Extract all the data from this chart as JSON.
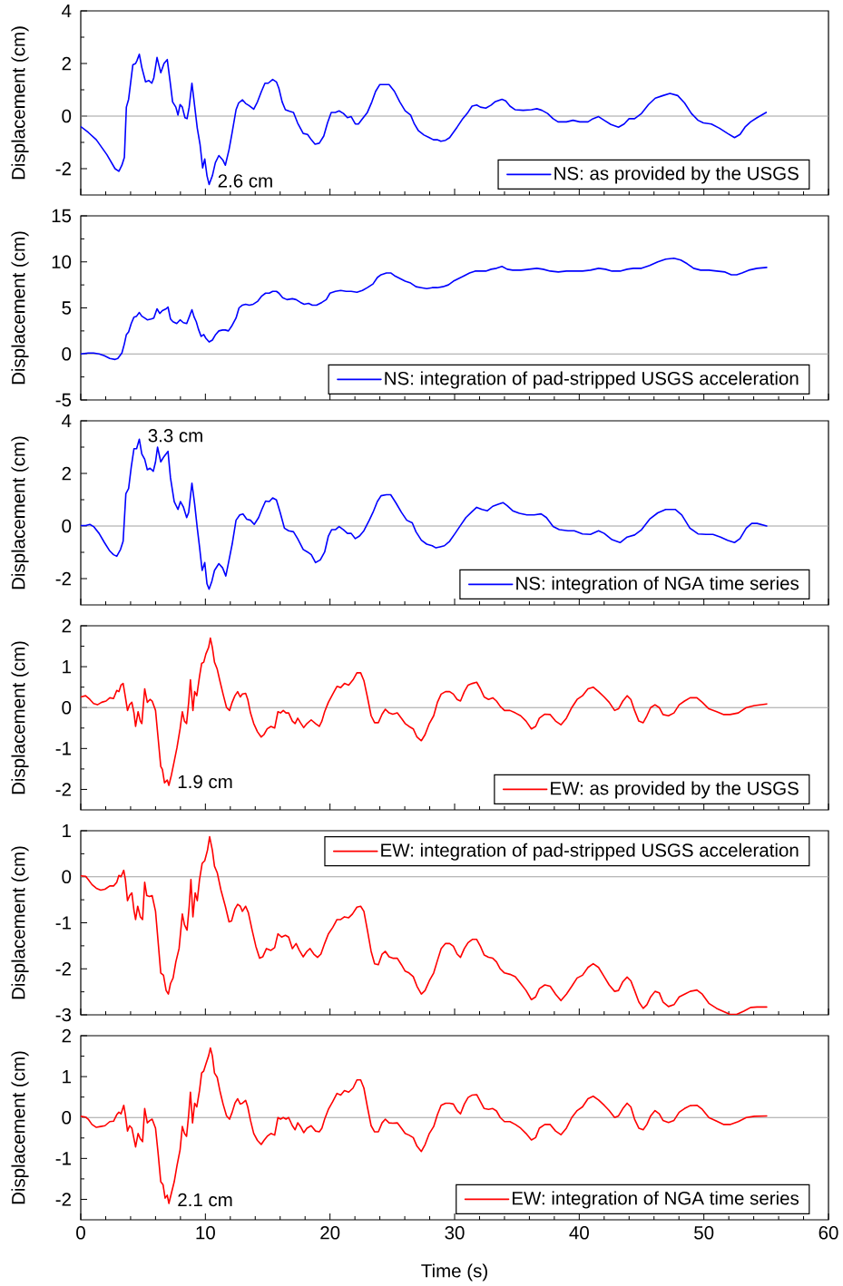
{
  "chart_data": [
    {
      "type": "line",
      "ylabel": "Displacement (cm)",
      "xlim": [
        0,
        60
      ],
      "xticks": [
        0,
        10,
        20,
        30,
        40,
        50,
        60
      ],
      "ylim": [
        -3,
        4
      ],
      "yticks": [
        -2,
        0,
        2,
        4
      ],
      "tick_labels": "y",
      "legend": "bottom right",
      "ref_lines": [
        {
          "axis": "y",
          "value": 0,
          "color": "#a0a0a0"
        }
      ],
      "annotations": [
        {
          "text": "2.6 cm",
          "x": 10.3,
          "y": -2.6
        }
      ],
      "x": [
        0,
        0.6,
        1.25,
        2.1,
        2.75,
        3.06,
        3.3,
        3.5,
        3.66,
        3.84,
        4.18,
        4.4,
        4.5,
        4.7,
        4.9,
        5.2,
        5.47,
        5.7,
        5.86,
        6.12,
        6.42,
        6.68,
        6.94,
        7.16,
        7.37,
        7.63,
        7.8,
        7.97,
        8.15,
        8.36,
        8.53,
        8.7,
        8.92,
        9.1,
        9.35,
        9.57,
        9.78,
        9.95,
        10.13,
        10.3,
        10.56,
        10.8,
        11.08,
        11.4,
        11.6,
        11.9,
        12.15,
        12.46,
        12.67,
        12.97,
        13.23,
        13.5,
        13.88,
        14.18,
        14.5,
        14.78,
        15.04,
        15.4,
        15.7,
        15.9,
        16.16,
        16.42,
        16.77,
        17.07,
        17.4,
        17.85,
        18.2,
        18.5,
        18.8,
        19.14,
        19.5,
        19.8,
        20.1,
        20.43,
        20.73,
        21.08,
        21.4,
        21.7,
        22.03,
        22.28,
        22.6,
        23.0,
        23.36,
        23.66,
        24.0,
        24.44,
        24.74,
        25.17,
        25.6,
        26.03,
        26.47,
        26.77,
        27.1,
        27.54,
        27.97,
        28.3,
        28.6,
        28.9,
        29.27,
        29.6,
        29.9,
        30.2,
        30.65,
        31.07,
        31.4,
        31.77,
        32.07,
        32.5,
        32.93,
        33.23,
        33.8,
        34.1,
        34.44,
        34.87,
        35.5,
        36.16,
        36.6,
        37.0,
        37.46,
        37.9,
        38.3,
        38.97,
        39.5,
        40.04,
        40.7,
        41.1,
        41.55,
        42.0,
        42.54,
        43.15,
        43.6,
        44.0,
        44.44,
        45.0,
        45.56,
        46.1,
        46.72,
        47.28,
        47.9,
        48.45,
        49.0,
        49.53,
        49.96,
        50.6,
        51.25,
        51.9,
        52.46,
        52.9,
        53.3,
        53.75,
        54.27,
        55.0
      ],
      "series": [
        {
          "name": "NS: as provided by the USGS",
          "color": "#0000ff",
          "values": [
            -0.4,
            -0.62,
            -0.9,
            -1.47,
            -2.0,
            -2.1,
            -1.87,
            -1.57,
            0.34,
            0.64,
            1.95,
            2.0,
            2.1,
            2.35,
            1.85,
            1.3,
            1.35,
            1.25,
            1.45,
            2.23,
            1.65,
            2.0,
            2.15,
            1.35,
            0.54,
            0.34,
            0.04,
            0.44,
            0.34,
            -0.06,
            -0.1,
            0.34,
            1.25,
            0.54,
            -0.46,
            -1.07,
            -1.97,
            -1.63,
            -2.27,
            -2.6,
            -2.27,
            -1.77,
            -1.5,
            -1.67,
            -1.87,
            -1.27,
            -0.62,
            0.24,
            0.5,
            0.62,
            0.48,
            0.4,
            0.26,
            0.54,
            0.94,
            1.25,
            1.25,
            1.39,
            1.3,
            1.05,
            0.54,
            0.24,
            0.18,
            0.14,
            -0.26,
            -0.66,
            -0.7,
            -0.9,
            -1.07,
            -1.03,
            -0.76,
            -0.26,
            0.14,
            0.14,
            0.2,
            0.1,
            -0.06,
            -0.02,
            -0.3,
            -0.3,
            -0.1,
            0.14,
            0.54,
            0.94,
            1.2,
            1.2,
            1.2,
            0.94,
            0.54,
            0.2,
            0.04,
            -0.3,
            -0.56,
            -0.72,
            -0.82,
            -0.9,
            -0.9,
            -0.96,
            -0.92,
            -0.82,
            -0.62,
            -0.42,
            -0.1,
            0.14,
            0.38,
            0.42,
            0.34,
            0.3,
            0.42,
            0.54,
            0.64,
            0.58,
            0.38,
            0.24,
            0.22,
            0.24,
            0.28,
            0.22,
            0.1,
            -0.1,
            -0.22,
            -0.22,
            -0.16,
            -0.22,
            -0.22,
            -0.1,
            -0.02,
            -0.16,
            -0.32,
            -0.42,
            -0.3,
            -0.1,
            -0.1,
            0.1,
            0.44,
            0.68,
            0.78,
            0.86,
            0.78,
            0.5,
            0.1,
            -0.16,
            -0.26,
            -0.3,
            -0.46,
            -0.66,
            -0.82,
            -0.7,
            -0.42,
            -0.22,
            -0.06,
            0.14
          ]
        }
      ]
    },
    {
      "type": "line",
      "ylabel": "Displacement (cm)",
      "xlim": [
        0,
        60
      ],
      "xticks": [
        0,
        10,
        20,
        30,
        40,
        50,
        60
      ],
      "ylim": [
        -5,
        15
      ],
      "yticks": [
        -5,
        0,
        5,
        10,
        15
      ],
      "tick_labels": "y",
      "legend": "bottom right",
      "ref_lines": [
        {
          "axis": "y",
          "value": 0,
          "color": "#a0a0a0"
        }
      ],
      "x": [
        0,
        0.6,
        1.03,
        1.47,
        1.9,
        2.33,
        2.76,
        2.97,
        3.3,
        3.5,
        3.66,
        3.84,
        4.05,
        4.27,
        4.48,
        4.7,
        4.9,
        5.13,
        5.34,
        5.65,
        5.86,
        6.12,
        6.34,
        6.55,
        6.85,
        7.0,
        7.2,
        7.4,
        7.7,
        7.97,
        8.23,
        8.5,
        8.7,
        8.92,
        9.1,
        9.27,
        9.44,
        9.66,
        9.87,
        10.04,
        10.3,
        10.56,
        10.82,
        11.08,
        11.38,
        11.6,
        11.85,
        12.1,
        12.46,
        12.7,
        12.97,
        13.23,
        13.53,
        13.84,
        14.18,
        14.53,
        14.83,
        15.13,
        15.4,
        15.7,
        15.9,
        16.2,
        16.55,
        16.98,
        17.28,
        17.63,
        17.93,
        18.28,
        18.58,
        18.92,
        19.35,
        19.7,
        20.0,
        20.43,
        20.86,
        21.3,
        21.7,
        22.16,
        22.6,
        23.0,
        23.45,
        23.8,
        24.1,
        24.53,
        24.87,
        25.17,
        25.6,
        26.03,
        26.47,
        26.9,
        27.33,
        27.76,
        28.2,
        28.6,
        29.05,
        29.5,
        29.9,
        30.34,
        30.78,
        31.2,
        31.64,
        32.07,
        32.5,
        32.93,
        33.36,
        33.8,
        34.22,
        34.66,
        35.3,
        35.95,
        36.6,
        37.1,
        37.67,
        38.32,
        38.97,
        39.6,
        40.26,
        40.9,
        41.55,
        42.1,
        42.63,
        43.28,
        43.84,
        44.35,
        45.0,
        45.65,
        46.3,
        46.94,
        47.6,
        48.15,
        48.66,
        49.18,
        49.74,
        50.4,
        51.03,
        51.7,
        52.2,
        52.63,
        53.06,
        53.6,
        54.27,
        55.04
      ],
      "series": [
        {
          "name": "NS: integration of pad-stripped USGS acceleration",
          "color": "#0000ff",
          "values": [
            0,
            0.1,
            0.1,
            0,
            -0.2,
            -0.5,
            -0.6,
            -0.5,
            0.1,
            1.1,
            2.1,
            2.4,
            3.3,
            4.0,
            4.1,
            4.5,
            4.1,
            3.9,
            3.7,
            3.8,
            3.9,
            4.9,
            4.4,
            4.7,
            4.9,
            5.1,
            3.8,
            3.5,
            3.3,
            3.7,
            3.4,
            3.3,
            4.0,
            4.8,
            4.0,
            3.5,
            2.7,
            1.9,
            2.1,
            1.7,
            1.3,
            1.5,
            2.1,
            2.5,
            2.6,
            2.6,
            2.5,
            3.0,
            3.9,
            5.0,
            5.3,
            5.4,
            5.3,
            5.4,
            5.7,
            6.3,
            6.6,
            6.6,
            6.8,
            6.8,
            6.6,
            6.1,
            5.9,
            6.0,
            5.9,
            5.6,
            5.4,
            5.5,
            5.3,
            5.3,
            5.6,
            5.9,
            6.6,
            6.8,
            6.9,
            6.8,
            6.8,
            6.7,
            6.9,
            7.2,
            7.6,
            8.3,
            8.6,
            8.8,
            8.8,
            8.5,
            8.2,
            7.9,
            7.7,
            7.3,
            7.2,
            7.1,
            7.2,
            7.2,
            7.3,
            7.5,
            7.9,
            8.2,
            8.5,
            8.8,
            9.0,
            9.0,
            9.0,
            9.2,
            9.3,
            9.5,
            9.2,
            9.1,
            9.1,
            9.2,
            9.3,
            9.2,
            9.0,
            8.9,
            9.0,
            9.0,
            9.0,
            9.1,
            9.3,
            9.2,
            9.0,
            9.0,
            9.2,
            9.3,
            9.3,
            9.6,
            10.0,
            10.3,
            10.4,
            10.2,
            9.8,
            9.3,
            9.1,
            9.1,
            9.0,
            8.9,
            8.6,
            8.6,
            8.8,
            9.1,
            9.3,
            9.4
          ]
        }
      ]
    },
    {
      "type": "line",
      "ylabel": "Displacement (cm)",
      "xlim": [
        0,
        60
      ],
      "xticks": [
        0,
        10,
        20,
        30,
        40,
        50,
        60
      ],
      "ylim": [
        -3,
        4
      ],
      "yticks": [
        -2,
        0,
        2,
        4
      ],
      "tick_labels": "y",
      "legend": "bottom right",
      "ref_lines": [
        {
          "axis": "y",
          "value": 0,
          "color": "#a0a0a0"
        }
      ],
      "annotations": [
        {
          "text": "3.3 cm",
          "x": 4.7,
          "y": 3.3
        }
      ],
      "x": [
        0,
        0.39,
        0.73,
        1.03,
        1.47,
        1.9,
        2.33,
        2.63,
        2.89,
        3.19,
        3.4,
        3.62,
        3.84,
        4.05,
        4.27,
        4.48,
        4.7,
        4.9,
        5.13,
        5.34,
        5.56,
        5.82,
        6.0,
        6.16,
        6.42,
        6.68,
        7.0,
        7.2,
        7.5,
        7.8,
        8.0,
        8.23,
        8.5,
        8.66,
        8.92,
        9.14,
        9.35,
        9.53,
        9.74,
        9.95,
        10.13,
        10.3,
        10.52,
        10.73,
        11.08,
        11.38,
        11.64,
        11.9,
        12.15,
        12.46,
        12.76,
        13.02,
        13.32,
        13.62,
        13.92,
        14.27,
        14.53,
        14.83,
        15.13,
        15.4,
        15.7,
        16.0,
        16.34,
        16.68,
        17.07,
        17.4,
        17.85,
        18.2,
        18.5,
        18.84,
        19.22,
        19.57,
        19.87,
        20.13,
        20.43,
        20.73,
        21.08,
        21.4,
        21.7,
        22.03,
        22.37,
        22.72,
        23.15,
        23.45,
        23.8,
        24.1,
        24.53,
        24.87,
        25.3,
        25.73,
        26.16,
        26.6,
        26.9,
        27.33,
        27.76,
        28.2,
        28.5,
        28.84,
        29.18,
        29.6,
        30.04,
        30.47,
        30.9,
        31.34,
        31.77,
        32.2,
        32.63,
        33.06,
        33.5,
        33.88,
        34.22,
        34.66,
        35.2,
        35.8,
        36.38,
        36.94,
        37.37,
        37.9,
        38.4,
        39.1,
        39.6,
        40.26,
        40.9,
        41.55,
        42.0,
        42.63,
        43.28,
        43.84,
        44.44,
        45.0,
        45.65,
        46.3,
        46.94,
        47.7,
        48.23,
        48.88,
        49.53,
        50.17,
        50.73,
        51.34,
        51.9,
        52.46,
        52.9,
        53.4,
        53.84,
        54.27,
        55.04
      ],
      "series": [
        {
          "name": "NS: integration of NGA time series",
          "color": "#0000ff",
          "values": [
            0.02,
            0.02,
            0.06,
            -0.02,
            -0.28,
            -0.63,
            -0.95,
            -1.09,
            -1.15,
            -0.89,
            -0.58,
            1.23,
            1.43,
            2.24,
            2.94,
            2.94,
            3.3,
            2.74,
            2.54,
            2.14,
            2.2,
            2.08,
            2.44,
            3.0,
            2.44,
            2.64,
            2.84,
            1.83,
            0.93,
            0.63,
            0.93,
            0.73,
            0.32,
            0.52,
            1.63,
            0.83,
            -0.08,
            -0.79,
            -1.69,
            -1.39,
            -2.2,
            -2.4,
            -2.1,
            -1.69,
            -1.43,
            -1.59,
            -1.9,
            -1.29,
            -0.69,
            0.22,
            0.42,
            0.46,
            0.26,
            0.22,
            0.06,
            0.32,
            0.63,
            0.95,
            0.93,
            1.07,
            0.99,
            0.52,
            -0.08,
            -0.18,
            -0.22,
            -0.48,
            -0.89,
            -0.99,
            -1.09,
            -1.39,
            -1.29,
            -0.99,
            -0.38,
            -0.14,
            -0.14,
            -0.02,
            -0.14,
            -0.28,
            -0.28,
            -0.48,
            -0.38,
            -0.18,
            0.22,
            0.52,
            0.93,
            1.15,
            1.19,
            1.19,
            0.87,
            0.52,
            0.22,
            0.12,
            -0.22,
            -0.54,
            -0.69,
            -0.75,
            -0.83,
            -0.79,
            -0.75,
            -0.58,
            -0.28,
            0.02,
            0.32,
            0.52,
            0.71,
            0.63,
            0.58,
            0.75,
            0.83,
            0.89,
            0.77,
            0.58,
            0.48,
            0.42,
            0.42,
            0.46,
            0.32,
            -0.02,
            -0.14,
            -0.18,
            -0.18,
            -0.3,
            -0.32,
            -0.18,
            -0.28,
            -0.52,
            -0.63,
            -0.42,
            -0.34,
            -0.14,
            0.26,
            0.5,
            0.63,
            0.63,
            0.42,
            -0.08,
            -0.3,
            -0.32,
            -0.32,
            -0.42,
            -0.54,
            -0.63,
            -0.48,
            -0.08,
            0.1,
            0.1,
            0.0
          ]
        }
      ]
    },
    {
      "type": "line",
      "ylabel": "Displacement (cm)",
      "xlim": [
        0,
        60
      ],
      "xticks": [
        0,
        10,
        20,
        30,
        40,
        50,
        60
      ],
      "ylim": [
        -2.5,
        2
      ],
      "yticks": [
        -2,
        -1,
        0,
        1,
        2
      ],
      "tick_labels": "y",
      "legend": "bottom right",
      "ref_lines": [
        {
          "axis": "y",
          "value": 0,
          "color": "#a0a0a0"
        }
      ],
      "annotations": [
        {
          "text": "1.9 cm",
          "x": 7.07,
          "y": -1.9
        }
      ],
      "x": [
        0,
        0.39,
        0.73,
        1.03,
        1.34,
        1.68,
        2.03,
        2.33,
        2.63,
        2.89,
        3.06,
        3.23,
        3.4,
        3.58,
        3.75,
        3.92,
        4.1,
        4.27,
        4.4,
        4.6,
        4.78,
        4.9,
        5.13,
        5.34,
        5.56,
        5.73,
        6.0,
        6.2,
        6.42,
        6.55,
        6.72,
        6.94,
        7.07,
        7.28,
        7.5,
        7.72,
        7.97,
        8.15,
        8.32,
        8.49,
        8.66,
        8.8,
        9.0,
        9.14,
        9.31,
        9.53,
        9.7,
        9.87,
        10.04,
        10.26,
        10.4,
        10.56,
        10.73,
        10.95,
        11.16,
        11.42,
        11.7,
        11.94,
        12.15,
        12.37,
        12.59,
        12.8,
        12.97,
        13.23,
        13.4,
        13.62,
        13.88,
        14.18,
        14.48,
        14.7,
        14.96,
        15.26,
        15.56,
        15.82,
        16.03,
        16.25,
        16.47,
        16.68,
        16.98,
        17.2,
        17.41,
        17.63,
        17.89,
        18.15,
        18.49,
        18.84,
        19.14,
        19.35,
        19.57,
        19.87,
        20.22,
        20.56,
        20.86,
        21.16,
        21.5,
        21.85,
        22.16,
        22.46,
        22.72,
        23.0,
        23.3,
        23.58,
        23.88,
        24.18,
        24.44,
        24.74,
        25.04,
        25.4,
        25.73,
        26.03,
        26.34,
        26.68,
        26.98,
        27.33,
        27.63,
        27.97,
        28.32,
        28.62,
        28.92,
        29.27,
        29.6,
        29.9,
        30.2,
        30.47,
        30.78,
        31.08,
        31.42,
        31.77,
        32.07,
        32.37,
        32.72,
        33.06,
        33.36,
        33.66,
        34.0,
        34.44,
        34.87,
        35.3,
        35.73,
        36.16,
        36.5,
        36.8,
        37.24,
        37.67,
        38.1,
        38.53,
        38.97,
        39.4,
        39.83,
        40.26,
        40.7,
        41.12,
        41.55,
        42.0,
        42.4,
        42.84,
        43.15,
        43.5,
        43.84,
        44.14,
        44.44,
        44.78,
        45.13,
        45.43,
        45.73,
        46.08,
        46.42,
        46.72,
        47.16,
        47.6,
        48.02,
        48.45,
        48.9,
        49.44,
        49.87,
        50.4,
        51.03,
        51.6,
        52.1,
        52.76,
        53.4,
        54.05,
        55.04
      ],
      "series": [
        {
          "name": "EW: as provided by the USGS",
          "color": "#ff0000",
          "values": [
            0.26,
            0.29,
            0.2,
            0.1,
            0.07,
            0.13,
            0.16,
            0.24,
            0.22,
            0.42,
            0.39,
            0.55,
            0.59,
            0.26,
            -0.07,
            0.07,
            0.13,
            -0.13,
            -0.46,
            -0.1,
            -0.33,
            -0.39,
            0.46,
            0.13,
            0.2,
            0.16,
            -0.07,
            -0.72,
            -1.44,
            -1.51,
            -1.84,
            -1.77,
            -1.9,
            -1.64,
            -1.31,
            -0.98,
            -0.52,
            -0.1,
            -0.33,
            -0.39,
            0.13,
            0.68,
            -0.07,
            0.39,
            0.29,
            0.76,
            1.08,
            1.11,
            1.31,
            1.47,
            1.7,
            1.47,
            1.11,
            0.94,
            0.66,
            0.33,
            0.0,
            -0.07,
            0.13,
            0.29,
            0.39,
            0.26,
            0.33,
            0.35,
            0.2,
            -0.13,
            -0.39,
            -0.59,
            -0.72,
            -0.66,
            -0.52,
            -0.46,
            -0.5,
            -0.1,
            -0.13,
            -0.07,
            -0.13,
            -0.13,
            -0.33,
            -0.39,
            -0.26,
            -0.37,
            -0.49,
            -0.39,
            -0.3,
            -0.39,
            -0.46,
            -0.33,
            -0.1,
            0.13,
            0.33,
            0.52,
            0.49,
            0.59,
            0.55,
            0.68,
            0.85,
            0.85,
            0.66,
            0.26,
            -0.2,
            -0.37,
            -0.37,
            -0.16,
            -0.04,
            -0.13,
            -0.16,
            -0.13,
            -0.26,
            -0.39,
            -0.46,
            -0.52,
            -0.72,
            -0.81,
            -0.66,
            -0.39,
            -0.2,
            0.13,
            0.33,
            0.39,
            0.39,
            0.33,
            0.2,
            0.16,
            0.39,
            0.55,
            0.59,
            0.62,
            0.46,
            0.26,
            0.2,
            0.24,
            0.16,
            0.03,
            -0.07,
            -0.07,
            -0.13,
            -0.2,
            -0.33,
            -0.52,
            -0.46,
            -0.26,
            -0.16,
            -0.17,
            -0.33,
            -0.42,
            -0.26,
            0.0,
            0.2,
            0.29,
            0.46,
            0.5,
            0.39,
            0.26,
            0.13,
            -0.07,
            -0.03,
            0.16,
            0.29,
            0.2,
            -0.07,
            -0.33,
            -0.37,
            -0.2,
            0.0,
            0.07,
            0.0,
            -0.17,
            -0.2,
            -0.13,
            0.07,
            0.16,
            0.24,
            0.24,
            0.13,
            -0.03,
            -0.1,
            -0.17,
            -0.17,
            -0.13,
            0.0,
            0.05,
            0.09
          ]
        }
      ]
    },
    {
      "type": "line",
      "ylabel": "Displacement (cm)",
      "xlim": [
        0,
        60
      ],
      "xticks": [
        0,
        10,
        20,
        30,
        40,
        50,
        60
      ],
      "ylim": [
        -3,
        1
      ],
      "yticks": [
        -3,
        -2,
        -1,
        0,
        1
      ],
      "tick_labels": "y",
      "legend": "top right",
      "ref_lines": [
        {
          "axis": "y",
          "value": 0,
          "color": "#a0a0a0"
        }
      ],
      "x": [
        0,
        0.39,
        0.6,
        0.9,
        1.25,
        1.6,
        1.94,
        2.33,
        2.63,
        2.89,
        3.06,
        3.23,
        3.45,
        3.58,
        3.75,
        3.92,
        4.1,
        4.27,
        4.4,
        4.57,
        4.78,
        4.96,
        5.13,
        5.3,
        5.52,
        5.73,
        6.0,
        6.2,
        6.42,
        6.64,
        6.85,
        7.03,
        7.2,
        7.41,
        7.63,
        7.89,
        8.15,
        8.32,
        8.53,
        8.7,
        8.84,
        9.0,
        9.18,
        9.35,
        9.53,
        9.74,
        9.95,
        10.17,
        10.34,
        10.56,
        10.73,
        10.95,
        11.25,
        11.6,
        11.9,
        12.1,
        12.37,
        12.59,
        12.8,
        12.97,
        13.23,
        13.45,
        13.75,
        14.05,
        14.35,
        14.6,
        14.9,
        15.26,
        15.56,
        15.82,
        16.12,
        16.42,
        16.68,
        16.98,
        17.28,
        17.54,
        17.85,
        18.15,
        18.4,
        18.7,
        19.0,
        19.27,
        19.57,
        19.87,
        20.22,
        20.56,
        20.86,
        21.16,
        21.5,
        21.8,
        22.16,
        22.46,
        22.72,
        23.0,
        23.3,
        23.58,
        23.88,
        24.18,
        24.44,
        24.74,
        25.04,
        25.4,
        25.73,
        26.03,
        26.34,
        26.68,
        26.98,
        27.33,
        27.63,
        27.97,
        28.32,
        28.62,
        28.92,
        29.27,
        29.6,
        29.9,
        30.2,
        30.47,
        30.78,
        31.08,
        31.42,
        31.77,
        32.07,
        32.37,
        32.72,
        33.06,
        33.36,
        33.66,
        34.0,
        34.44,
        34.87,
        35.3,
        35.73,
        36.16,
        36.5,
        36.8,
        37.24,
        37.67,
        38.1,
        38.53,
        38.97,
        39.4,
        39.83,
        40.26,
        40.7,
        41.12,
        41.55,
        42.0,
        42.4,
        42.84,
        43.15,
        43.5,
        43.84,
        44.14,
        44.44,
        44.78,
        45.13,
        45.43,
        45.73,
        46.08,
        46.42,
        46.72,
        47.16,
        47.6,
        48.02,
        48.45,
        48.9,
        49.44,
        49.87,
        50.4,
        51.03,
        51.6,
        52.1,
        52.63,
        53.2,
        53.75,
        54.27,
        55.04
      ],
      "series": [
        {
          "name": "EW: integration of pad-stripped USGS acceleration",
          "color": "#ff0000",
          "values": [
            0.02,
            0.01,
            -0.06,
            -0.17,
            -0.25,
            -0.29,
            -0.27,
            -0.2,
            -0.2,
            -0.12,
            0.03,
            0.0,
            0.14,
            -0.06,
            -0.52,
            -0.41,
            -0.35,
            -0.73,
            -0.93,
            -0.64,
            -0.87,
            -0.93,
            -0.12,
            -0.41,
            -0.43,
            -0.41,
            -0.75,
            -1.39,
            -2.09,
            -2.14,
            -2.47,
            -2.55,
            -2.32,
            -2.2,
            -1.85,
            -1.56,
            -0.81,
            -1.04,
            -1.16,
            -0.64,
            -0.06,
            -0.87,
            -0.35,
            -0.52,
            -0.06,
            0.29,
            0.35,
            0.58,
            0.87,
            0.58,
            0.23,
            0.09,
            -0.29,
            -0.64,
            -0.98,
            -0.96,
            -0.7,
            -0.6,
            -0.64,
            -0.75,
            -0.64,
            -0.78,
            -1.16,
            -1.51,
            -1.77,
            -1.74,
            -1.56,
            -1.6,
            -1.54,
            -1.24,
            -1.31,
            -1.27,
            -1.31,
            -1.56,
            -1.45,
            -1.6,
            -1.74,
            -1.62,
            -1.56,
            -1.68,
            -1.75,
            -1.68,
            -1.45,
            -1.24,
            -1.1,
            -0.93,
            -0.93,
            -0.87,
            -0.89,
            -0.81,
            -0.66,
            -0.64,
            -0.75,
            -1.16,
            -1.62,
            -1.89,
            -1.91,
            -1.68,
            -1.62,
            -1.74,
            -1.77,
            -1.77,
            -1.91,
            -2.05,
            -2.09,
            -2.17,
            -2.38,
            -2.55,
            -2.47,
            -2.26,
            -2.09,
            -1.82,
            -1.56,
            -1.45,
            -1.45,
            -1.51,
            -1.68,
            -1.75,
            -1.56,
            -1.43,
            -1.36,
            -1.36,
            -1.51,
            -1.7,
            -1.75,
            -1.77,
            -1.85,
            -2.0,
            -2.09,
            -2.12,
            -2.17,
            -2.32,
            -2.47,
            -2.67,
            -2.61,
            -2.43,
            -2.35,
            -2.38,
            -2.55,
            -2.69,
            -2.55,
            -2.38,
            -2.2,
            -2.14,
            -1.97,
            -1.89,
            -1.97,
            -2.17,
            -2.35,
            -2.49,
            -2.47,
            -2.28,
            -2.18,
            -2.26,
            -2.47,
            -2.72,
            -2.86,
            -2.78,
            -2.61,
            -2.49,
            -2.52,
            -2.72,
            -2.82,
            -2.78,
            -2.61,
            -2.55,
            -2.49,
            -2.46,
            -2.55,
            -2.75,
            -2.86,
            -2.93,
            -2.99,
            -2.99,
            -2.92,
            -2.84,
            -2.83,
            -2.83
          ]
        }
      ]
    },
    {
      "type": "line",
      "ylabel": "Displacement (cm)",
      "xlabel": "Time (s)",
      "xlim": [
        0,
        60
      ],
      "xticks": [
        0,
        10,
        20,
        30,
        40,
        50,
        60
      ],
      "ylim": [
        -2.5,
        2
      ],
      "yticks": [
        -2,
        -1,
        0,
        1,
        2
      ],
      "legend": "bottom right",
      "ref_lines": [
        {
          "axis": "y",
          "value": 0,
          "color": "#a0a0a0"
        }
      ],
      "annotations": [
        {
          "text": "2.1 cm",
          "x": 7.07,
          "y": -2.1
        }
      ],
      "x": [
        0,
        0.39,
        0.6,
        0.9,
        1.25,
        1.6,
        1.94,
        2.33,
        2.63,
        2.89,
        3.06,
        3.23,
        3.45,
        3.58,
        3.75,
        3.92,
        4.1,
        4.27,
        4.4,
        4.6,
        4.78,
        4.96,
        5.13,
        5.34,
        5.56,
        5.73,
        6.0,
        6.2,
        6.42,
        6.6,
        6.77,
        6.94,
        7.07,
        7.28,
        7.5,
        7.72,
        7.97,
        8.15,
        8.32,
        8.49,
        8.66,
        8.8,
        8.97,
        9.14,
        9.31,
        9.53,
        9.7,
        9.87,
        10.04,
        10.26,
        10.4,
        10.56,
        10.73,
        10.95,
        11.16,
        11.42,
        11.7,
        11.94,
        12.15,
        12.37,
        12.59,
        12.8,
        12.97,
        13.23,
        13.4,
        13.62,
        13.88,
        14.18,
        14.48,
        14.7,
        14.96,
        15.26,
        15.56,
        15.82,
        16.03,
        16.25,
        16.47,
        16.68,
        16.98,
        17.2,
        17.41,
        17.63,
        17.89,
        18.15,
        18.49,
        18.84,
        19.14,
        19.35,
        19.57,
        19.87,
        20.22,
        20.56,
        20.86,
        21.16,
        21.5,
        21.85,
        22.16,
        22.46,
        22.72,
        23.0,
        23.3,
        23.58,
        23.88,
        24.18,
        24.44,
        24.74,
        25.04,
        25.4,
        25.73,
        26.03,
        26.34,
        26.68,
        26.98,
        27.33,
        27.63,
        27.97,
        28.32,
        28.62,
        28.92,
        29.27,
        29.6,
        29.9,
        30.2,
        30.47,
        30.78,
        31.08,
        31.42,
        31.77,
        32.07,
        32.37,
        32.72,
        33.06,
        33.36,
        33.66,
        34.0,
        34.44,
        34.87,
        35.3,
        35.73,
        36.16,
        36.5,
        36.8,
        37.24,
        37.67,
        38.1,
        38.53,
        38.97,
        39.4,
        39.83,
        40.26,
        40.7,
        41.12,
        41.55,
        42.0,
        42.4,
        42.84,
        43.15,
        43.5,
        43.84,
        44.14,
        44.44,
        44.78,
        45.13,
        45.43,
        45.73,
        46.08,
        46.42,
        46.72,
        47.16,
        47.6,
        48.02,
        48.45,
        48.9,
        49.44,
        49.87,
        50.4,
        51.03,
        51.6,
        52.1,
        52.76,
        53.4,
        54.05,
        55.04
      ],
      "series": [
        {
          "name": "EW: integration of NGA time series",
          "color": "#ff0000",
          "values": [
            0.03,
            0.01,
            -0.04,
            -0.17,
            -0.24,
            -0.22,
            -0.2,
            -0.1,
            -0.09,
            0.07,
            0.13,
            0.09,
            0.3,
            0.07,
            -0.33,
            -0.2,
            -0.26,
            -0.52,
            -0.72,
            -0.39,
            -0.52,
            -0.59,
            0.22,
            -0.13,
            -0.07,
            -0.04,
            -0.26,
            -0.85,
            -1.57,
            -1.64,
            -1.97,
            -1.9,
            -2.1,
            -1.84,
            -1.57,
            -1.18,
            -0.79,
            -0.22,
            -0.39,
            -0.46,
            0.07,
            0.62,
            -0.13,
            0.35,
            0.26,
            0.66,
            1.09,
            1.14,
            1.31,
            1.51,
            1.7,
            1.51,
            1.09,
            0.98,
            0.66,
            0.33,
            0.04,
            -0.04,
            0.13,
            0.35,
            0.46,
            0.33,
            0.35,
            0.42,
            0.26,
            -0.07,
            -0.39,
            -0.56,
            -0.66,
            -0.56,
            -0.46,
            -0.39,
            -0.43,
            0.0,
            -0.04,
            0.0,
            -0.04,
            0.0,
            -0.2,
            -0.3,
            -0.13,
            -0.22,
            -0.37,
            -0.26,
            -0.2,
            -0.33,
            -0.35,
            -0.26,
            -0.04,
            0.2,
            0.39,
            0.59,
            0.55,
            0.66,
            0.62,
            0.72,
            0.92,
            0.92,
            0.72,
            0.26,
            -0.2,
            -0.35,
            -0.35,
            -0.13,
            -0.04,
            -0.13,
            -0.14,
            -0.13,
            -0.26,
            -0.39,
            -0.43,
            -0.49,
            -0.7,
            -0.83,
            -0.66,
            -0.39,
            -0.22,
            0.07,
            0.3,
            0.35,
            0.35,
            0.33,
            0.17,
            0.09,
            0.33,
            0.49,
            0.55,
            0.56,
            0.39,
            0.22,
            0.2,
            0.22,
            0.16,
            0.0,
            -0.1,
            -0.1,
            -0.17,
            -0.26,
            -0.39,
            -0.55,
            -0.49,
            -0.26,
            -0.17,
            -0.17,
            -0.33,
            -0.42,
            -0.26,
            0.0,
            0.17,
            0.26,
            0.46,
            0.52,
            0.43,
            0.3,
            0.17,
            0.0,
            0.04,
            0.22,
            0.35,
            0.26,
            -0.04,
            -0.26,
            -0.3,
            -0.17,
            0.04,
            0.17,
            0.09,
            -0.07,
            -0.12,
            -0.07,
            0.13,
            0.22,
            0.29,
            0.3,
            0.2,
            0.0,
            -0.09,
            -0.17,
            -0.17,
            -0.1,
            0.0,
            0.03,
            0.04
          ]
        }
      ]
    }
  ]
}
